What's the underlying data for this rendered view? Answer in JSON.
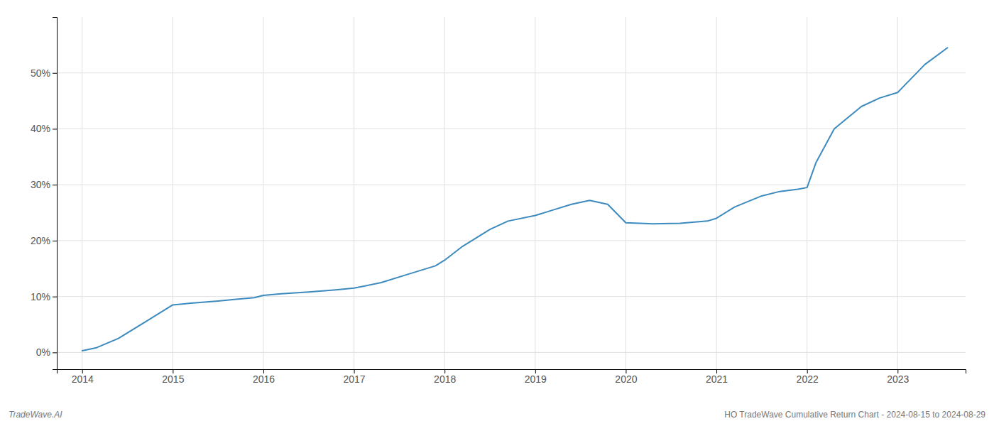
{
  "chart_data": {
    "type": "line",
    "x": [
      2014.0,
      2014.15,
      2014.4,
      2014.7,
      2015.0,
      2015.2,
      2015.5,
      2015.7,
      2015.9,
      2016.0,
      2016.2,
      2016.5,
      2016.8,
      2017.0,
      2017.3,
      2017.6,
      2017.9,
      2018.0,
      2018.2,
      2018.5,
      2018.7,
      2019.0,
      2019.2,
      2019.4,
      2019.6,
      2019.8,
      2020.0,
      2020.3,
      2020.6,
      2020.9,
      2021.0,
      2021.2,
      2021.5,
      2021.7,
      2021.9,
      2022.0,
      2022.1,
      2022.3,
      2022.6,
      2022.8,
      2023.0,
      2023.3,
      2023.55
    ],
    "values": [
      0.3,
      0.8,
      2.5,
      5.5,
      8.5,
      8.8,
      9.2,
      9.5,
      9.8,
      10.2,
      10.5,
      10.8,
      11.2,
      11.5,
      12.5,
      14.0,
      15.5,
      16.5,
      19.0,
      22.0,
      23.5,
      24.5,
      25.5,
      26.5,
      27.2,
      26.5,
      23.2,
      23.0,
      23.1,
      23.5,
      24.0,
      26.0,
      28.0,
      28.8,
      29.2,
      29.5,
      34.0,
      40.0,
      44.0,
      45.5,
      46.5,
      51.5,
      54.5
    ],
    "color": "#3d8abf",
    "xlim": [
      2013.72,
      2023.75
    ],
    "ylim": [
      -3,
      60
    ],
    "xticks": [
      2014,
      2015,
      2016,
      2017,
      2018,
      2019,
      2020,
      2021,
      2022,
      2023
    ],
    "yticks": [
      {
        "value": 0,
        "label": "0%"
      },
      {
        "value": 10,
        "label": "10%"
      },
      {
        "value": 20,
        "label": "20%"
      },
      {
        "value": 30,
        "label": "30%"
      },
      {
        "value": 40,
        "label": "40%"
      },
      {
        "value": 50,
        "label": "50%"
      }
    ],
    "grid": true,
    "annotations": [
      "TradeWave.AI",
      "HO TradeWave Cumulative Return Chart - 2024-08-15 to 2024-08-29"
    ]
  }
}
